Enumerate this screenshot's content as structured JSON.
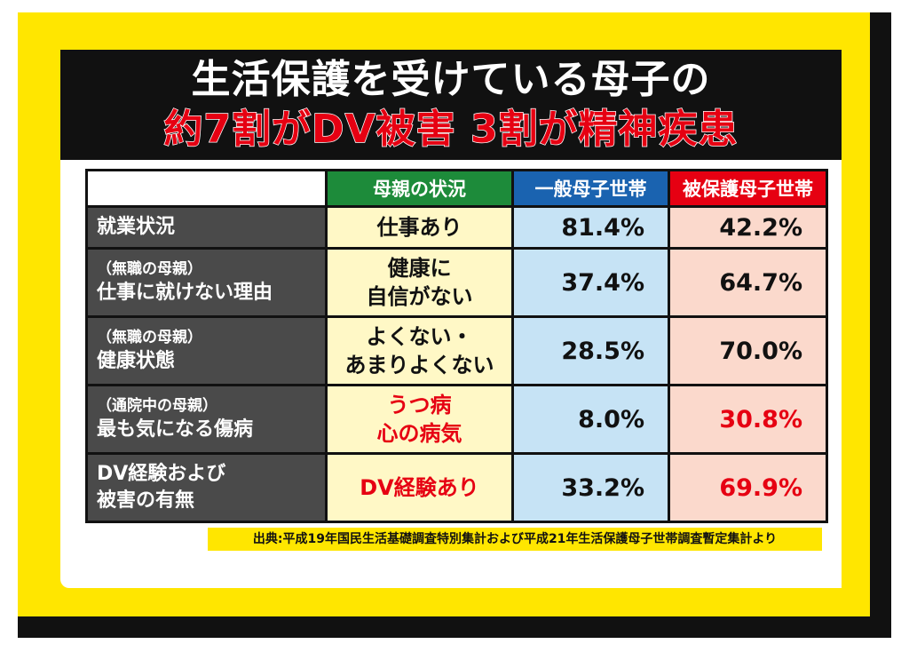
{
  "title": {
    "line1": "生活保護を受けている母子の",
    "line2": "約7割がDV被害 3割が精神疾患"
  },
  "table": {
    "headers": {
      "blank": "",
      "status": "母親の状況",
      "general": "一般母子世帯",
      "welfare": "被保護母子世帯"
    },
    "rows": [
      {
        "label_sub": "",
        "label_main": "就業状況",
        "status_line1": "仕事あり",
        "status_line2": "",
        "general": "81.4%",
        "welfare": "42.2%"
      },
      {
        "label_sub": "（無職の母親）",
        "label_main": "仕事に就けない理由",
        "status_line1": "健康に",
        "status_line2": "自信がない",
        "general": "37.4%",
        "welfare": "64.7%"
      },
      {
        "label_sub": "（無職の母親）",
        "label_main": "健康状態",
        "status_line1": "よくない・",
        "status_line2": "あまりよくない",
        "general": "28.5%",
        "welfare": "70.0%"
      },
      {
        "label_sub": "（通院中の母親）",
        "label_main": "最も気になる傷病",
        "status_line1": "うつ病",
        "status_line2": "心の病気",
        "general": "8.0%",
        "welfare": "30.8%"
      },
      {
        "label_sub": "DV経験および",
        "label_main": "被害の有無",
        "status_line1": "DV経験あり",
        "status_line2": "",
        "general": "33.2%",
        "welfare": "69.9%"
      }
    ]
  },
  "source": "出典:平成19年国民生活基礎調査特別集計および平成21年生活保護母子世帯調査暫定集計より",
  "colors": {
    "yellow": "#ffe600",
    "black": "#111111",
    "red": "#e60012",
    "green": "#1d8b3a",
    "blue": "#1a63b0"
  }
}
